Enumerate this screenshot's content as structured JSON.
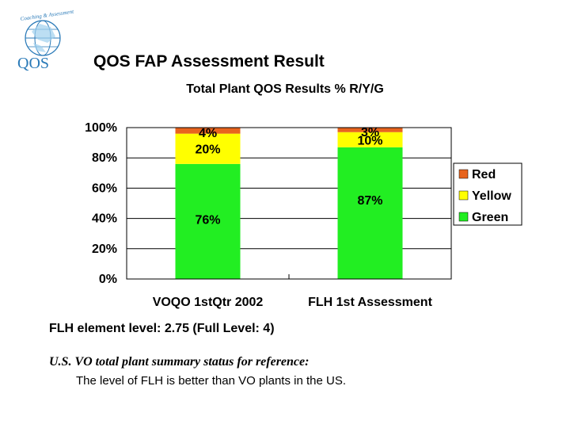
{
  "slide": {
    "title": "QOS FAP Assessment Result",
    "logo_text": "QOS",
    "logo_arc_text": "Coaching & Assessment",
    "note_level": "FLH element level: 2.75 (Full Level: 4)",
    "note_reference": "U.S. VO total plant summary status for reference:",
    "note_conclusion": "The level of FLH is better than VO plants in the US."
  },
  "colors": {
    "red": "#e8641e",
    "yellow": "#ffff00",
    "green": "#22ee22",
    "logo_blue": "#2a7ab8"
  },
  "chart_data": {
    "type": "bar",
    "stacked": true,
    "title": "Total Plant QOS Results % R/Y/G",
    "categories": [
      "VOQO 1stQtr 2002",
      "FLH 1st Assessment"
    ],
    "series": [
      {
        "name": "Green",
        "values": [
          76,
          87
        ],
        "labels": [
          "76%",
          "87%"
        ]
      },
      {
        "name": "Yellow",
        "values": [
          20,
          10
        ],
        "labels": [
          "20%",
          "10%"
        ]
      },
      {
        "name": "Red",
        "values": [
          4,
          3
        ],
        "labels": [
          "4%",
          "3%"
        ]
      }
    ],
    "legend_order": [
      "Red",
      "Yellow",
      "Green"
    ],
    "legend_position": "right",
    "yticks": [
      "0%",
      "20%",
      "40%",
      "60%",
      "80%",
      "100%"
    ],
    "ylim": [
      0,
      100
    ],
    "grid": true
  }
}
